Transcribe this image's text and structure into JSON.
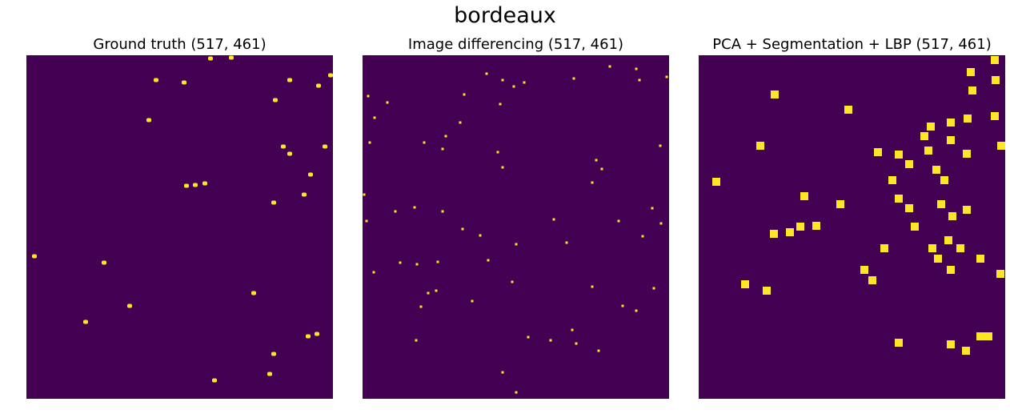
{
  "title": "bordeaux",
  "colors": {
    "background": "#440154",
    "changed": "#fde725"
  },
  "chart_data": [
    {
      "type": "heatmap",
      "title": "Ground truth (517, 461)",
      "shape": [
        517,
        461
      ],
      "axes_visible": false,
      "legend": "none",
      "points": [
        [
          195,
          100
        ],
        [
          230,
          103
        ],
        [
          263,
          73
        ],
        [
          289,
          72
        ],
        [
          362,
          100
        ],
        [
          398,
          107
        ],
        [
          413,
          94
        ],
        [
          186,
          150
        ],
        [
          344,
          125
        ],
        [
          233,
          232
        ],
        [
          244,
          231
        ],
        [
          256,
          229
        ],
        [
          354,
          183
        ],
        [
          362,
          192
        ],
        [
          406,
          183
        ],
        [
          388,
          218
        ],
        [
          380,
          243
        ],
        [
          342,
          253
        ],
        [
          43,
          320
        ],
        [
          130,
          328
        ],
        [
          162,
          382
        ],
        [
          107,
          402
        ],
        [
          317,
          366
        ],
        [
          385,
          420
        ],
        [
          396,
          417
        ],
        [
          342,
          442
        ],
        [
          337,
          467
        ],
        [
          268,
          475
        ]
      ]
    },
    {
      "type": "heatmap",
      "title": "Image differencing (517, 461)",
      "shape": [
        517,
        461
      ],
      "axes_visible": false,
      "legend": "none",
      "points": [
        [
          608,
          92
        ],
        [
          628,
          100
        ],
        [
          655,
          103
        ],
        [
          642,
          108
        ],
        [
          580,
          118
        ],
        [
          625,
          130
        ],
        [
          717,
          98
        ],
        [
          799,
          100
        ],
        [
          833,
          96
        ],
        [
          762,
          83
        ],
        [
          795,
          86
        ],
        [
          460,
          120
        ],
        [
          484,
          128
        ],
        [
          468,
          147
        ],
        [
          575,
          153
        ],
        [
          557,
          170
        ],
        [
          553,
          186
        ],
        [
          530,
          178
        ],
        [
          622,
          190
        ],
        [
          628,
          209
        ],
        [
          745,
          200
        ],
        [
          752,
          211
        ],
        [
          740,
          228
        ],
        [
          825,
          182
        ],
        [
          462,
          178
        ],
        [
          455,
          243
        ],
        [
          494,
          264
        ],
        [
          518,
          259
        ],
        [
          553,
          264
        ],
        [
          578,
          286
        ],
        [
          600,
          294
        ],
        [
          645,
          305
        ],
        [
          692,
          274
        ],
        [
          708,
          303
        ],
        [
          773,
          276
        ],
        [
          815,
          260
        ],
        [
          803,
          295
        ],
        [
          826,
          279
        ],
        [
          458,
          276
        ],
        [
          467,
          340
        ],
        [
          500,
          328
        ],
        [
          521,
          330
        ],
        [
          547,
          327
        ],
        [
          610,
          325
        ],
        [
          535,
          366
        ],
        [
          545,
          363
        ],
        [
          526,
          383
        ],
        [
          590,
          376
        ],
        [
          740,
          358
        ],
        [
          778,
          382
        ],
        [
          795,
          388
        ],
        [
          817,
          360
        ],
        [
          640,
          352
        ],
        [
          688,
          425
        ],
        [
          715,
          412
        ],
        [
          720,
          429
        ],
        [
          748,
          438
        ],
        [
          660,
          421
        ],
        [
          628,
          465
        ],
        [
          645,
          490
        ],
        [
          520,
          425
        ]
      ]
    },
    {
      "type": "heatmap",
      "title": "PCA + Segmentation + LBP (517, 461)",
      "shape": [
        517,
        461
      ],
      "axes_visible": false,
      "legend": "none",
      "points": [
        [
          1243,
          75
        ],
        [
          1213,
          90
        ],
        [
          1244,
          100
        ],
        [
          1215,
          113
        ],
        [
          968,
          118
        ],
        [
          1060,
          137
        ],
        [
          1163,
          158
        ],
        [
          1188,
          153
        ],
        [
          1209,
          148
        ],
        [
          1243,
          145
        ],
        [
          1155,
          170
        ],
        [
          1188,
          175
        ],
        [
          1251,
          182
        ],
        [
          1097,
          190
        ],
        [
          1123,
          193
        ],
        [
          1136,
          205
        ],
        [
          1160,
          188
        ],
        [
          1170,
          212
        ],
        [
          1208,
          192
        ],
        [
          1115,
          225
        ],
        [
          1123,
          248
        ],
        [
          1136,
          260
        ],
        [
          1143,
          283
        ],
        [
          1180,
          225
        ],
        [
          1176,
          255
        ],
        [
          1190,
          270
        ],
        [
          1208,
          262
        ],
        [
          1185,
          300
        ],
        [
          1200,
          310
        ],
        [
          1225,
          323
        ],
        [
          1250,
          342
        ],
        [
          1165,
          310
        ],
        [
          1172,
          323
        ],
        [
          1105,
          310
        ],
        [
          1080,
          337
        ],
        [
          1090,
          350
        ],
        [
          1188,
          337
        ],
        [
          950,
          182
        ],
        [
          895,
          227
        ],
        [
          1005,
          245
        ],
        [
          1050,
          255
        ],
        [
          1000,
          283
        ],
        [
          1020,
          282
        ],
        [
          967,
          292
        ],
        [
          987,
          290
        ],
        [
          931,
          355
        ],
        [
          958,
          363
        ],
        [
          1123,
          428
        ],
        [
          1188,
          430
        ],
        [
          1207,
          438
        ],
        [
          1225,
          420
        ],
        [
          1235,
          420
        ]
      ]
    }
  ]
}
